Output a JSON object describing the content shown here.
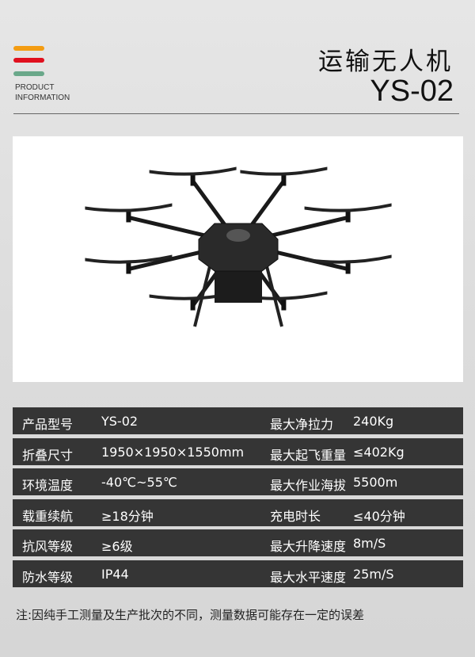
{
  "header": {
    "product_info": [
      "PRODUCT",
      "INFORMATION"
    ],
    "title": "运输无人机",
    "model": "YS-02",
    "bar_colors": [
      "#f39c12",
      "#e0101e",
      "#6aa88a"
    ]
  },
  "specs": [
    {
      "label1": "产品型号",
      "value1": "YS-02",
      "label2": "最大净拉力",
      "value2": "240Kg"
    },
    {
      "label1": "折叠尺寸",
      "value1": "1950×1950×1550mm",
      "label2": "最大起飞重量",
      "value2": "  ≤402Kg"
    },
    {
      "label1": "环境温度",
      "value1": "-40℃~55℃",
      "label2": "最大作业海拔",
      "value2": " 5500m"
    },
    {
      "label1": "载重续航",
      "value1": "≥18分钟",
      "label2": "充电时长",
      "value2": "≤40分钟"
    },
    {
      "label1": "抗风等级",
      "value1": "≥6级",
      "label2": "最大升降速度",
      "value2": " 8m/S"
    },
    {
      "label1": "防水等级",
      "value1": "IP44",
      "label2": "最大水平速度",
      "value2": " 25m/S"
    }
  ],
  "note": "注:因纯手工测量及生产批次的不同，测量数据可能存在一定的误差"
}
